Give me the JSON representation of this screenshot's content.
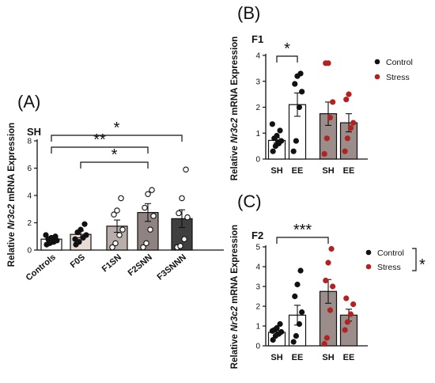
{
  "colors": {
    "control_dot": "#111111",
    "stress_dot": "#b22222",
    "axis": "#111111"
  },
  "panels": {
    "A": {
      "letter": "(A)",
      "subtitle": "SH",
      "ylabel_before": "Relative ",
      "ylabel_gene": "Nr3c2",
      "ylabel_after": " mRNA Expression"
    },
    "B": {
      "letter": "(B)",
      "subtitle": "F1",
      "ylabel_before": "Relative ",
      "ylabel_gene": "Nr3c2",
      "ylabel_after": " mRNA Expression"
    },
    "C": {
      "letter": "(C)",
      "subtitle": "F2",
      "ylabel_before": "Relative ",
      "ylabel_gene": "Nr3c2",
      "ylabel_after": " mRNA Expression"
    }
  },
  "legend_B": {
    "control": "Control",
    "stress": "Stress"
  },
  "legend_C": {
    "control": "Control",
    "stress": "Stress",
    "sig": "*"
  },
  "chart_data": [
    {
      "panel": "A",
      "type": "bar",
      "categories": [
        "Controls",
        "F0S",
        "F1SN",
        "F2SNN",
        "F3SNNN"
      ],
      "ylim": [
        0,
        8
      ],
      "yticks": [
        0,
        2,
        4,
        6,
        8
      ],
      "bar_fills": [
        "#ffffff",
        "#e9dcd6",
        "#b9adab",
        "#8f8382",
        "#3f3f3f"
      ],
      "means": [
        0.8,
        1.15,
        1.75,
        2.75,
        2.3
      ],
      "sem": [
        0.1,
        0.25,
        0.45,
        0.65,
        0.65
      ],
      "points": [
        [
          0.4,
          0.5,
          0.6,
          0.7,
          0.8,
          0.9,
          1.0,
          1.1,
          0.6,
          0.7
        ],
        [
          0.4,
          0.6,
          0.9,
          1.1,
          1.3,
          1.5,
          1.9,
          0.8
        ],
        [
          0.2,
          0.5,
          1.1,
          1.5,
          2.6,
          2.9,
          3.8
        ],
        [
          0.2,
          0.5,
          1.5,
          2.5,
          3.1,
          4.1,
          4.4
        ],
        [
          0.2,
          0.3,
          0.8,
          2.4,
          2.7,
          3.8,
          5.9
        ]
      ],
      "comparisons": [
        {
          "from": 0,
          "to": 4,
          "label": "*"
        },
        {
          "from": 0,
          "to": 3,
          "label": "**"
        },
        {
          "from": 1,
          "to": 3,
          "label": "*"
        }
      ]
    },
    {
      "panel": "B",
      "type": "bar",
      "categories": [
        "SH",
        "EE",
        "SH",
        "EE"
      ],
      "ylim": [
        0,
        4
      ],
      "yticks": [
        0,
        1,
        2,
        3,
        4
      ],
      "bar_fills": [
        "#ffffff",
        "#ffffff",
        "#9b8d8a",
        "#9b8d8a"
      ],
      "point_colors": [
        "control_dot",
        "control_dot",
        "stress_dot",
        "stress_dot"
      ],
      "means": [
        0.72,
        2.1,
        1.75,
        1.4
      ],
      "sem": [
        0.1,
        0.45,
        0.45,
        0.35
      ],
      "points": [
        [
          0.3,
          0.5,
          0.6,
          0.7,
          0.8,
          0.9,
          1.1,
          1.35,
          0.65
        ],
        [
          0.3,
          0.7,
          2.0,
          2.6,
          2.9,
          3.2,
          3.3
        ],
        [
          0.2,
          0.8,
          1.6,
          2.2,
          3.7,
          3.7
        ],
        [
          0.3,
          0.8,
          1.2,
          1.4,
          2.3,
          2.5
        ]
      ],
      "comparisons": [
        {
          "from": 0,
          "to": 1,
          "label": "*"
        }
      ],
      "series": [
        {
          "name": "Control"
        },
        {
          "name": "Stress"
        }
      ]
    },
    {
      "panel": "C",
      "type": "bar",
      "categories": [
        "SH",
        "EE",
        "SH",
        "EE"
      ],
      "ylim": [
        0,
        5
      ],
      "yticks": [
        0,
        1,
        2,
        3,
        4,
        5
      ],
      "bar_fills": [
        "#ffffff",
        "#ffffff",
        "#9b8d8a",
        "#9b8d8a"
      ],
      "point_colors": [
        "control_dot",
        "control_dot",
        "stress_dot",
        "stress_dot"
      ],
      "means": [
        0.68,
        1.55,
        2.75,
        1.55
      ],
      "sem": [
        0.1,
        0.5,
        0.6,
        0.3
      ],
      "points": [
        [
          0.3,
          0.5,
          0.6,
          0.7,
          0.8,
          0.9,
          1.1,
          0.75
        ],
        [
          0.2,
          0.5,
          1.1,
          1.7,
          2.5,
          3.1,
          3.8
        ],
        [
          0.1,
          0.4,
          1.8,
          3.0,
          3.3,
          4.2,
          4.9
        ],
        [
          0.8,
          1.2,
          1.6,
          2.1,
          2.4
        ]
      ],
      "comparisons": [
        {
          "from": 0,
          "to": 2,
          "label": "***"
        }
      ],
      "series": [
        {
          "name": "Control"
        },
        {
          "name": "Stress"
        }
      ]
    }
  ]
}
